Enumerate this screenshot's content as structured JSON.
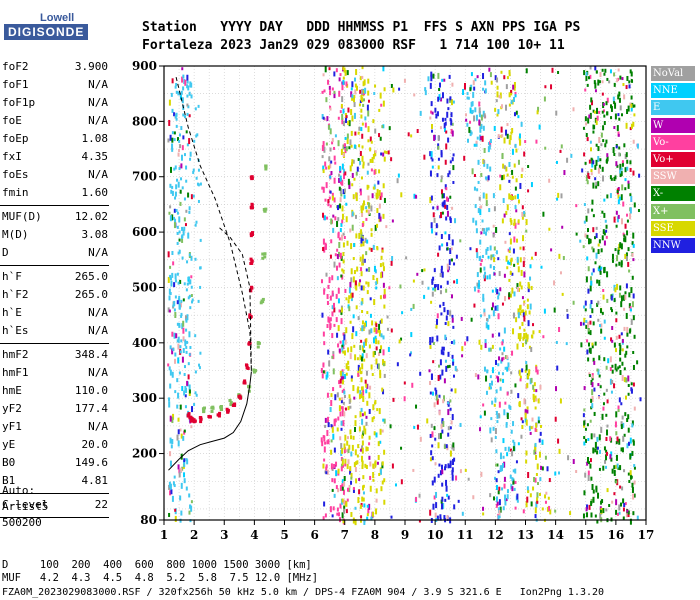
{
  "logo": {
    "line1": "Lowell",
    "line2": "DIGISONDE"
  },
  "header": {
    "line1": "Station   YYYY DAY   DDD HHMMSS P1  FFS S AXN PPS IGA PS",
    "line2": "Fortaleza 2023 Jan29 029 083000 RSF   1 714 100 10+ 11"
  },
  "params": [
    {
      "label": "foF2",
      "value": "3.900"
    },
    {
      "label": "foF1",
      "value": "N/A"
    },
    {
      "label": "foF1p",
      "value": "N/A"
    },
    {
      "label": "foE",
      "value": "N/A"
    },
    {
      "label": "foEp",
      "value": "1.08"
    },
    {
      "label": "fxI",
      "value": "4.35"
    },
    {
      "label": "foEs",
      "value": "N/A"
    },
    {
      "label": "fmin",
      "value": "1.60"
    },
    {
      "label": "MUF(D)",
      "value": "12.02"
    },
    {
      "label": "M(D)",
      "value": "3.08"
    },
    {
      "label": "D",
      "value": "N/A"
    },
    {
      "label": "h`F",
      "value": "265.0"
    },
    {
      "label": "h`F2",
      "value": "265.0"
    },
    {
      "label": "h`E",
      "value": "N/A"
    },
    {
      "label": "h`Es",
      "value": "N/A"
    },
    {
      "label": "hmF2",
      "value": "348.4"
    },
    {
      "label": "hmF1",
      "value": "N/A"
    },
    {
      "label": "hmE",
      "value": "110.0"
    },
    {
      "label": "yF2",
      "value": "177.4"
    },
    {
      "label": "yF1",
      "value": "N/A"
    },
    {
      "label": "yE",
      "value": "20.0"
    },
    {
      "label": "B0",
      "value": "149.6"
    },
    {
      "label": "B1",
      "value": "4.81"
    },
    {
      "label": "C-level",
      "value": "22"
    }
  ],
  "auto": {
    "line1": "Auto:",
    "line2": "Artist5",
    "line3": "500200"
  },
  "legend": [
    {
      "label": "NoVal",
      "color": "#a0a0a0"
    },
    {
      "label": "NNE",
      "color": "#00d0ff"
    },
    {
      "label": "E",
      "color": "#40c8f0"
    },
    {
      "label": "W",
      "color": "#b000b0"
    },
    {
      "label": "Vo-",
      "color": "#ff40a0"
    },
    {
      "label": "Vo+",
      "color": "#e00030"
    },
    {
      "label": "SSW",
      "color": "#f0b0b0"
    },
    {
      "label": "X-",
      "color": "#008000"
    },
    {
      "label": "X+",
      "color": "#80c060"
    },
    {
      "label": "SSE",
      "color": "#d8d800"
    },
    {
      "label": "NNW",
      "color": "#2020e0"
    }
  ],
  "footer": {
    "line1": "D     100  200  400  600  800 1000 1500 3000 [km]",
    "line2": "MUF   4.2  4.3  4.5  4.8  5.2  5.8  7.5 12.0 [MHz]",
    "line3": "FZA0M_2023029083000.RSF / 320fx256h 50 kHz 5.0 km / DPS-4 FZA0M 904 / 3.9 S 321.6 E   Ion2Png 1.3.20"
  },
  "chart_data": {
    "type": "scatter",
    "title": "",
    "xlabel": "",
    "ylabel": "",
    "xlim": [
      1,
      17
    ],
    "ylim": [
      80,
      900
    ],
    "xticks": [
      1,
      2,
      3,
      4,
      5,
      6,
      7,
      8,
      9,
      10,
      11,
      12,
      13,
      14,
      15,
      16,
      17
    ],
    "yticks": [
      80,
      200,
      300,
      400,
      500,
      600,
      700,
      800,
      900
    ],
    "grid": true,
    "trace_o": {
      "color": "#e00030",
      "points": [
        [
          1.8,
          272
        ],
        [
          1.9,
          265
        ],
        [
          2.0,
          263
        ],
        [
          2.2,
          264
        ],
        [
          2.5,
          268
        ],
        [
          2.8,
          273
        ],
        [
          3.1,
          280
        ],
        [
          3.3,
          290
        ],
        [
          3.5,
          305
        ],
        [
          3.65,
          330
        ],
        [
          3.75,
          360
        ],
        [
          3.82,
          400
        ],
        [
          3.86,
          450
        ],
        [
          3.88,
          500
        ],
        [
          3.89,
          550
        ],
        [
          3.9,
          600
        ],
        [
          3.9,
          650
        ],
        [
          3.9,
          700
        ]
      ]
    },
    "trace_x": {
      "color": "#80c060",
      "points": [
        [
          2.3,
          280
        ],
        [
          2.6,
          283
        ],
        [
          2.9,
          287
        ],
        [
          3.2,
          294
        ],
        [
          3.5,
          305
        ],
        [
          3.8,
          320
        ],
        [
          4.0,
          350
        ],
        [
          4.15,
          400
        ],
        [
          4.25,
          480
        ],
        [
          4.3,
          560
        ],
        [
          4.33,
          640
        ],
        [
          4.35,
          720
        ]
      ]
    },
    "profile_solid": [
      [
        1.15,
        170
      ],
      [
        1.5,
        190
      ],
      [
        1.8,
        205
      ],
      [
        2.2,
        216
      ],
      [
        2.6,
        222
      ],
      [
        3.0,
        228
      ],
      [
        3.3,
        238
      ],
      [
        3.55,
        258
      ],
      [
        3.75,
        290
      ],
      [
        3.85,
        325
      ],
      [
        3.9,
        348
      ]
    ],
    "profile_dashed": [
      [
        1.4,
        880
      ],
      [
        1.8,
        790
      ],
      [
        2.2,
        720
      ],
      [
        2.7,
        660
      ],
      [
        3.2,
        580
      ],
      [
        3.6,
        490
      ],
      [
        3.85,
        420
      ],
      [
        3.9,
        348
      ],
      [
        3.85,
        500
      ],
      [
        3.6,
        560
      ],
      [
        3.2,
        590
      ],
      [
        2.8,
        610
      ]
    ],
    "scatter_bands": [
      {
        "x": 1.5,
        "color": "#40c8f0"
      },
      {
        "x": 6.6,
        "color": "#ff40a0"
      },
      {
        "x": 7.2,
        "color": "#d8d800"
      },
      {
        "x": 7.9,
        "color": "#d8d800"
      },
      {
        "x": 10.2,
        "color": "#2020e0"
      },
      {
        "x": 11.8,
        "color": "#40c8f0"
      },
      {
        "x": 12.8,
        "color": "#d8d800"
      },
      {
        "x": 15.3,
        "color": "#008000"
      },
      {
        "x": 16.2,
        "color": "#008000"
      }
    ]
  }
}
